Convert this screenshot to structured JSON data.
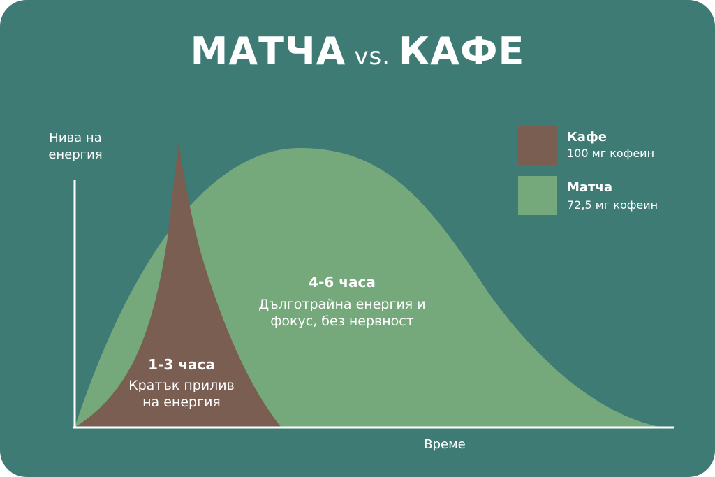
{
  "title": {
    "left": "МАТЧА",
    "vs": "vs.",
    "right": "КАФЕ"
  },
  "colors": {
    "background": "#3f7b75",
    "coffee": "#7a5e51",
    "matcha": "#75a87b",
    "axis": "#ffffff"
  },
  "chart_data": {
    "type": "area",
    "ylabel": "Нива на енергия",
    "xlabel": "Време",
    "grid": false,
    "legend_position": "top-right",
    "series": [
      {
        "name": "Кафе",
        "description": "100 мг кофеин",
        "color": "#7a5e51",
        "duration_label": "1-3 часа",
        "note": "Кратък прилив на енергия"
      },
      {
        "name": "Матча",
        "description": "72,5 мг кофеин",
        "color": "#75a87b",
        "duration_label": "4-6 часа",
        "note": "Дълготрайна енергия и фокус, без нервност"
      }
    ]
  }
}
